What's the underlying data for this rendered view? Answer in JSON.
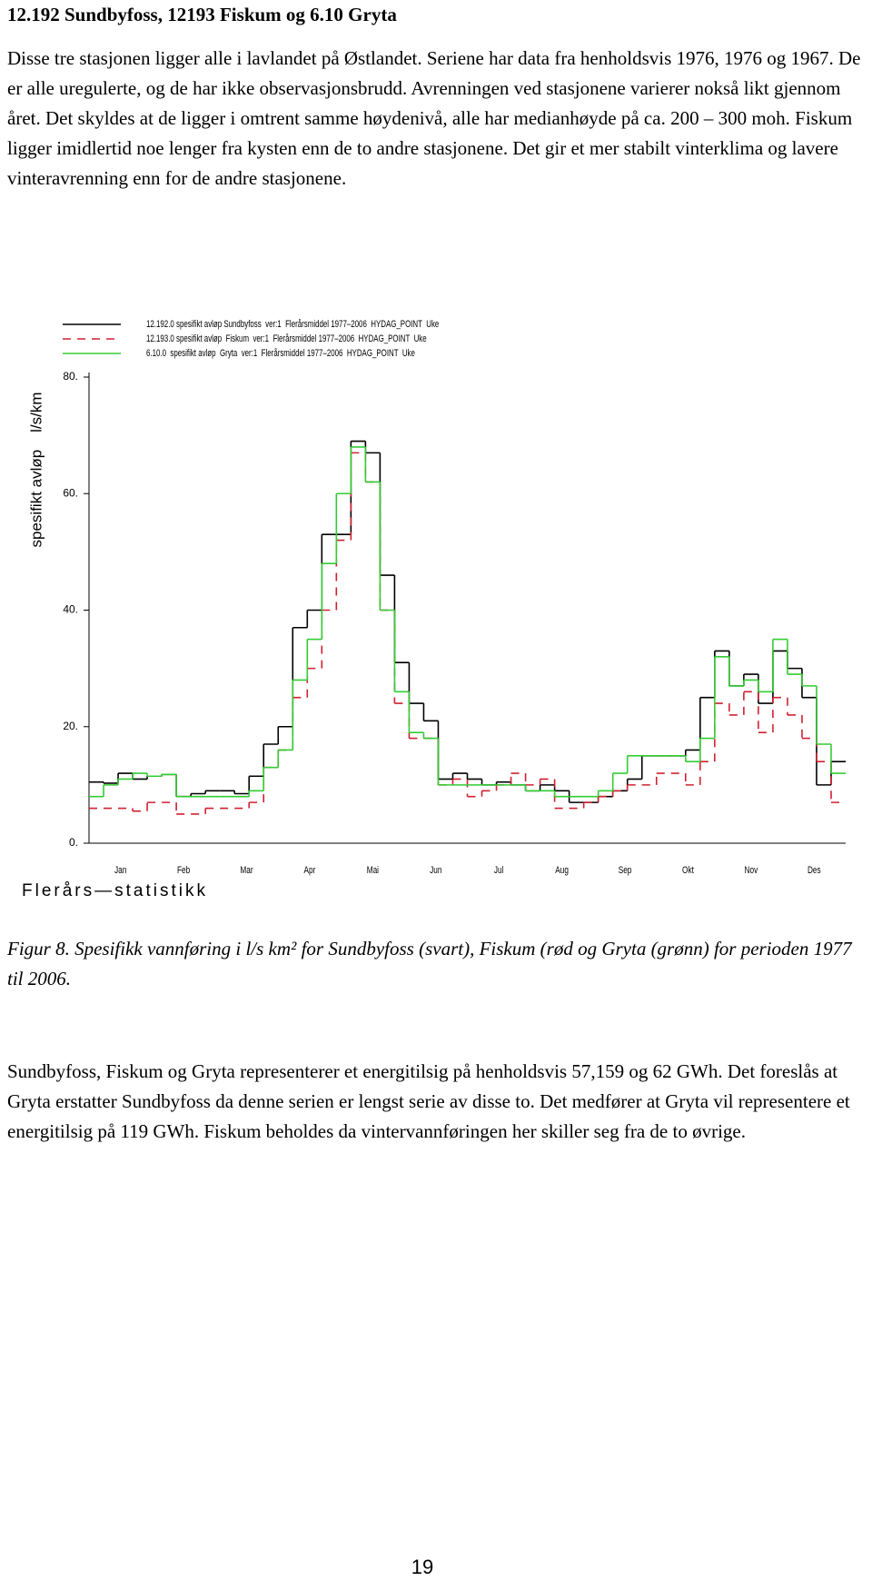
{
  "header": {
    "title": "12.192 Sundbyfoss, 12193 Fiskum og 6.10 Gryta"
  },
  "paragraphs": [
    "Disse tre stasjonen ligger alle i lavlandet på Østlandet. Seriene har data fra henholdsvis 1976, 1976 og 1967. De er alle uregulerte, og de har ikke observasjonsbrudd. Avrenningen ved stasjonene varierer nokså likt gjennom året. Det skyldes at de ligger i omtrent samme høydenivå, alle har medianhøyde på ca. 200 – 300 moh.  Fiskum ligger imidlertid noe lenger fra kysten enn de to andre stasjonene. Det gir et mer stabilt vinterklima og lavere vinteravrenning enn for de andre stasjonene.",
    "Sundbyfoss, Fiskum og Gryta representerer et energitilsig på henholdsvis 57,159 og 62 GWh. Det foreslås at Gryta erstatter Sundbyfoss da denne serien er lengst serie av disse to.  Det medfører at Gryta vil representere et energitilsig på 119 GWh. Fiskum beholdes da vintervannføringen her skiller seg fra de to øvrige."
  ],
  "caption": "Figur 8. Spesifikk vannføring i l/s km² for Sundbyfoss (svart), Fiskum (rød og Gryta (grønn) for perioden 1977 til 2006.",
  "page_number": "19",
  "chart_data": {
    "type": "step",
    "ylabel": "spesifikt avløp    l/s/km",
    "footer": "Flerårs—statistikk",
    "month_labels": [
      "Jan",
      "Feb",
      "Mar",
      "Apr",
      "Mai",
      "Jun",
      "Jul",
      "Aug",
      "Sep",
      "Okt",
      "Nov",
      "Des"
    ],
    "ylim": [
      0,
      80
    ],
    "yticks": [
      {
        "value": 0,
        "label": "0."
      },
      {
        "value": 20,
        "label": "20."
      },
      {
        "value": 40,
        "label": "40."
      },
      {
        "value": 60,
        "label": "60."
      },
      {
        "value": 80,
        "label": "80."
      }
    ],
    "grid": false,
    "series": [
      {
        "name": "12.192.0 spesifikt avløp Sundbyfoss  ver:1  Flerårsmiddel 1977–2006  HYDAG_POINT  Uke",
        "color": "#000000",
        "dash": false,
        "values": [
          10.5,
          10.3,
          12,
          11,
          11.5,
          11.8,
          8,
          8.5,
          9,
          9,
          8.5,
          11.5,
          17,
          20,
          37,
          40,
          53,
          53,
          69,
          67,
          46,
          31,
          24,
          21,
          11,
          12,
          11,
          10,
          10.5,
          10,
          9,
          10,
          9,
          7,
          7,
          8,
          9,
          11,
          15,
          15,
          15,
          16,
          25,
          33,
          27,
          29,
          24,
          33,
          30,
          25,
          10,
          14
        ]
      },
      {
        "name": "12.193.0 spesifikt avløp  Fiskum  ver:1  Flerårsmiddel 1977–2006  HYDAG_POINT  Uke",
        "color": "#d02030",
        "dash": true,
        "values": [
          6,
          6,
          6,
          5.5,
          7,
          7,
          5,
          5,
          6,
          6,
          6,
          7,
          13,
          16,
          25,
          30,
          40,
          52,
          67,
          62,
          40,
          24,
          18,
          18,
          10,
          11,
          8,
          9,
          10,
          12,
          10,
          11,
          6,
          6,
          7,
          8,
          9,
          10,
          10,
          12,
          12,
          10,
          14,
          24,
          22,
          26,
          19,
          25,
          22,
          18,
          14,
          7
        ]
      },
      {
        "name": "6.10.0  spesifikt avløp  Gryta  ver:1  Flerårsmiddel 1977–2006  HYDAG_POINT  Uke",
        "color": "#33cc33",
        "dash": false,
        "values": [
          8,
          10,
          11,
          12,
          11.5,
          11.8,
          8,
          8,
          8,
          8,
          8,
          9,
          13,
          16,
          28,
          35,
          48,
          60,
          68,
          62,
          40,
          26,
          19,
          18,
          10,
          10,
          10,
          10,
          10,
          10,
          9,
          9,
          8,
          8,
          8,
          9,
          12,
          15,
          15,
          15,
          15,
          14,
          18,
          32,
          27,
          28,
          26,
          35,
          29,
          27,
          17,
          12
        ]
      }
    ]
  }
}
